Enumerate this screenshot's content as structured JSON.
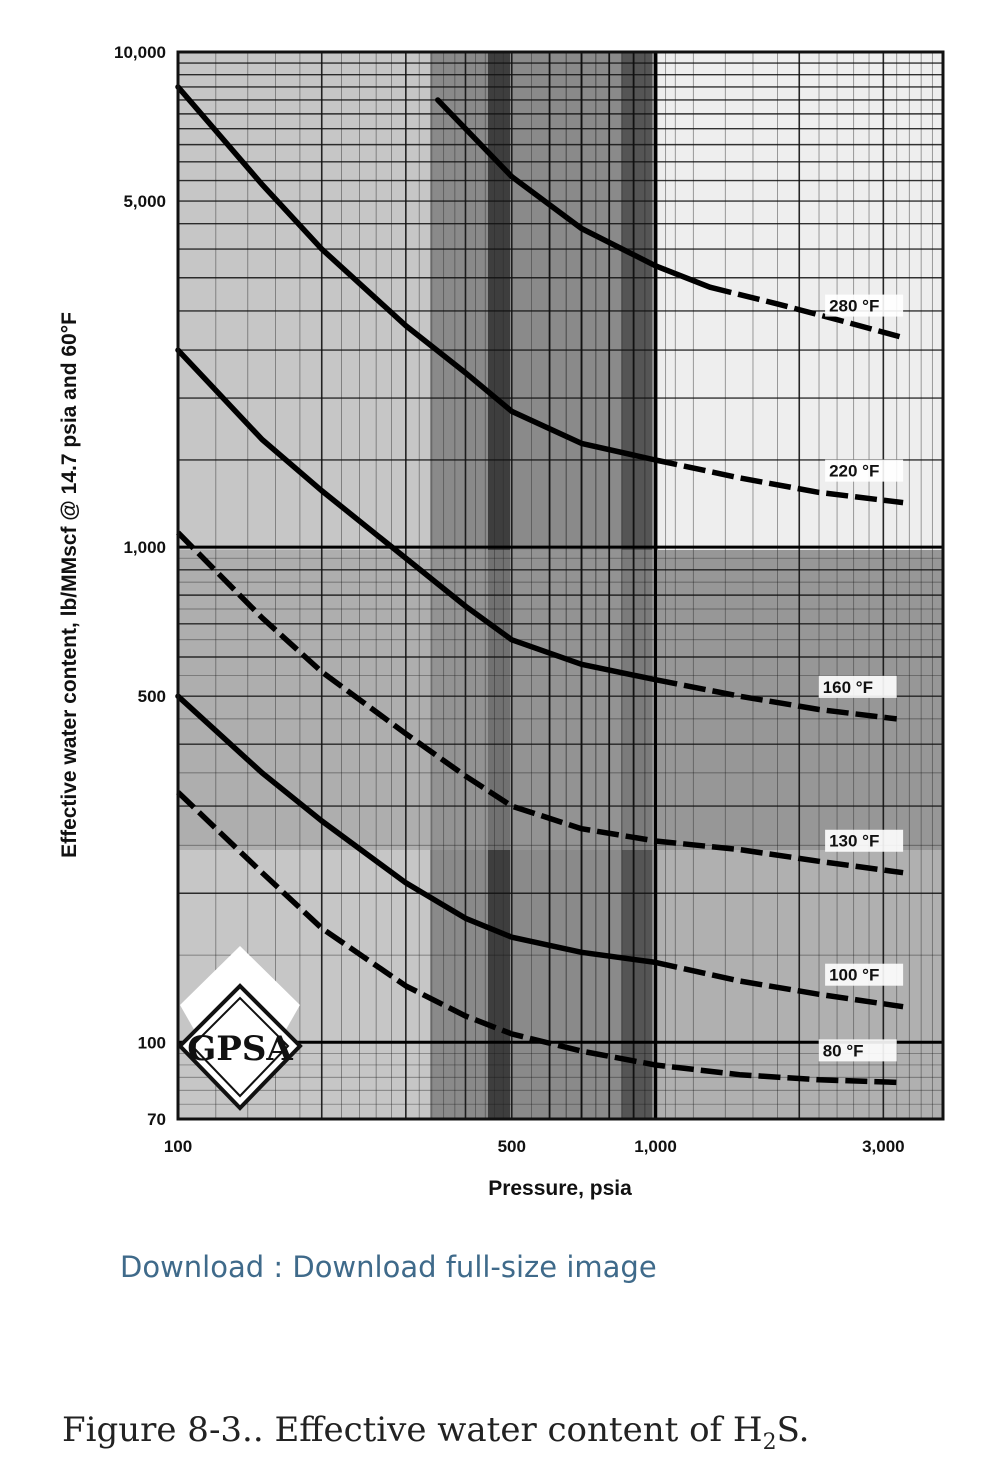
{
  "chart_data": {
    "type": "line",
    "title": "",
    "xlabel": "Pressure, psia",
    "ylabel": "Effective water content, lb/MMscf @ 14.7 psia and 60°F",
    "xscale": "log",
    "yscale": "log",
    "xlim": [
      100,
      4000
    ],
    "ylim": [
      70,
      10000
    ],
    "x_ticks": [
      {
        "value": 100,
        "label": "100"
      },
      {
        "value": 500,
        "label": "500"
      },
      {
        "value": 1000,
        "label": "1,000"
      },
      {
        "value": 3000,
        "label": "3,000"
      }
    ],
    "y_ticks": [
      {
        "value": 10000,
        "label": "10,000"
      },
      {
        "value": 5000,
        "label": "5,000"
      },
      {
        "value": 1000,
        "label": "1,000"
      },
      {
        "value": 500,
        "label": "500"
      },
      {
        "value": 100,
        "label": "100"
      },
      {
        "value": 70,
        "label": "70"
      }
    ],
    "grid": true,
    "series": [
      {
        "name": "280 °F",
        "label": "280 °F",
        "solid": [
          [
            350,
            8000
          ],
          [
            500,
            5600
          ],
          [
            700,
            4400
          ],
          [
            1000,
            3700
          ],
          [
            1300,
            3350
          ]
        ],
        "dashed": [
          [
            1300,
            3350
          ],
          [
            1800,
            3100
          ],
          [
            2500,
            2850
          ],
          [
            3300,
            2650
          ]
        ]
      },
      {
        "name": "220 °F",
        "label": "220 °F",
        "solid": [
          [
            100,
            8500
          ],
          [
            150,
            5400
          ],
          [
            200,
            4000
          ],
          [
            300,
            2800
          ],
          [
            400,
            2250
          ],
          [
            500,
            1880
          ],
          [
            700,
            1620
          ],
          [
            1000,
            1500
          ]
        ],
        "dashed": [
          [
            1000,
            1500
          ],
          [
            1500,
            1380
          ],
          [
            2200,
            1290
          ],
          [
            3300,
            1230
          ]
        ]
      },
      {
        "name": "160 °F",
        "label": "160 °F",
        "solid": [
          [
            100,
            2500
          ],
          [
            150,
            1650
          ],
          [
            200,
            1300
          ],
          [
            300,
            950
          ],
          [
            400,
            760
          ],
          [
            500,
            650
          ],
          [
            700,
            580
          ],
          [
            1000,
            540
          ]
        ],
        "dashed": [
          [
            1000,
            540
          ],
          [
            1500,
            500
          ],
          [
            2200,
            470
          ],
          [
            3200,
            450
          ]
        ]
      },
      {
        "name": "130 °F",
        "label": "130 °F",
        "solid": [],
        "dashed": [
          [
            100,
            1070
          ],
          [
            150,
            720
          ],
          [
            200,
            560
          ],
          [
            300,
            420
          ],
          [
            400,
            345
          ],
          [
            500,
            300
          ],
          [
            700,
            270
          ],
          [
            1000,
            255
          ],
          [
            1500,
            245
          ],
          [
            2200,
            232
          ],
          [
            3300,
            220
          ]
        ]
      },
      {
        "name": "100 °F",
        "label": "100 °F",
        "solid": [
          [
            100,
            500
          ],
          [
            150,
            350
          ],
          [
            200,
            280
          ],
          [
            300,
            210
          ],
          [
            400,
            178
          ],
          [
            500,
            163
          ],
          [
            700,
            152
          ],
          [
            1000,
            145
          ]
        ],
        "dashed": [
          [
            1000,
            145
          ],
          [
            1500,
            133
          ],
          [
            2200,
            125
          ],
          [
            3300,
            118
          ]
        ]
      },
      {
        "name": "80 °F",
        "label": "80 °F",
        "solid": [],
        "dashed": [
          [
            100,
            320
          ],
          [
            150,
            220
          ],
          [
            200,
            170
          ],
          [
            300,
            130
          ],
          [
            400,
            113
          ],
          [
            500,
            104
          ],
          [
            700,
            96
          ],
          [
            1000,
            90
          ],
          [
            1500,
            86
          ],
          [
            2200,
            84
          ],
          [
            3200,
            83
          ]
        ]
      }
    ]
  },
  "page": {
    "download_link": "Download : Download full-size image",
    "caption_before": "Figure 8-3.. Effective water content of H",
    "caption_sub": "2",
    "caption_after": "S.",
    "logo_text": "GPSA"
  }
}
